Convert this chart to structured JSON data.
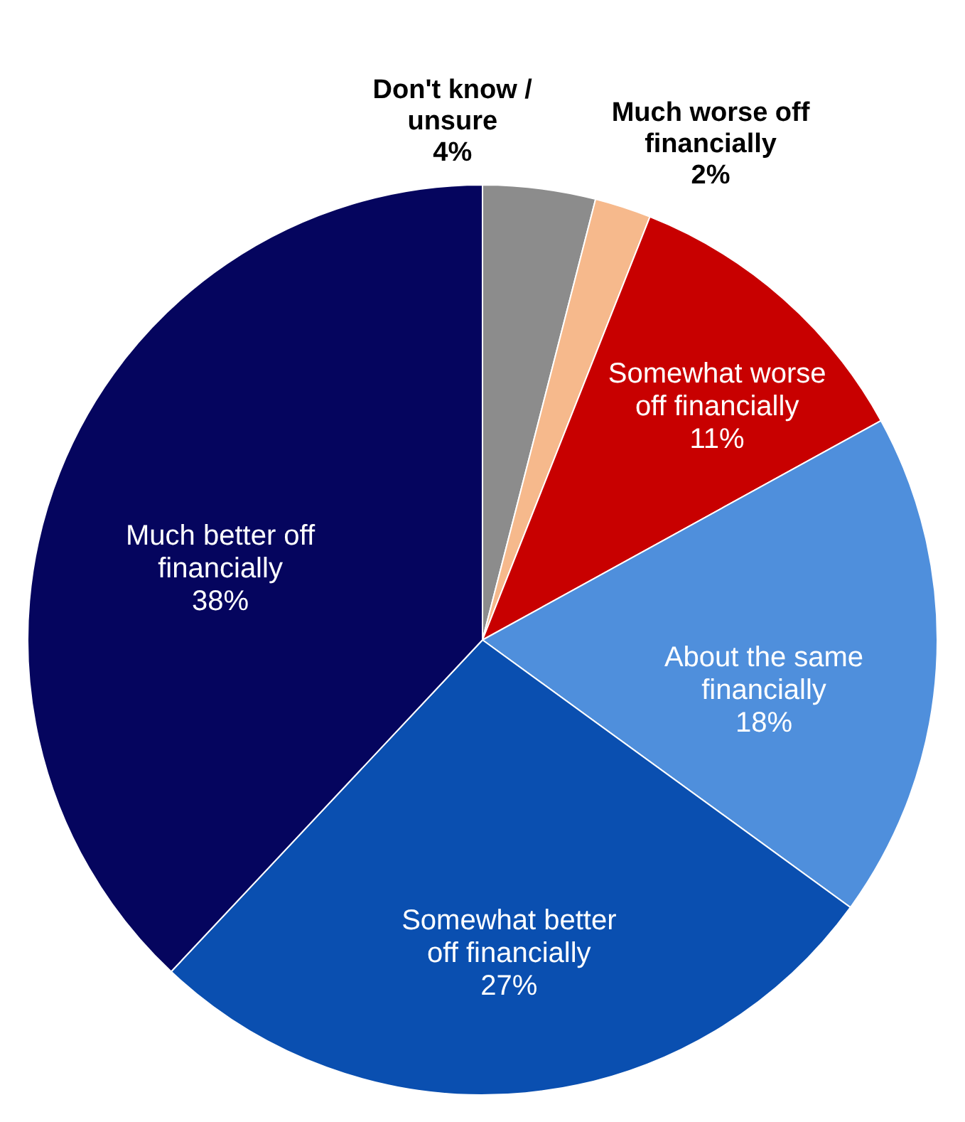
{
  "chart_data": {
    "type": "pie",
    "categories": [
      "Don't know / unsure",
      "Much worse off financially",
      "Somewhat worse off financially",
      "About the same financially",
      "Somewhat better off financially",
      "Much better off financially"
    ],
    "values": [
      4,
      2,
      11,
      18,
      27,
      38
    ],
    "value_labels": [
      "4%",
      "2%",
      "11%",
      "18%",
      "27%",
      "38%"
    ],
    "colors": [
      "#8c8c8c",
      "#f6b98c",
      "#c80000",
      "#4f8fdc",
      "#0a4fb0",
      "#05055e"
    ]
  }
}
